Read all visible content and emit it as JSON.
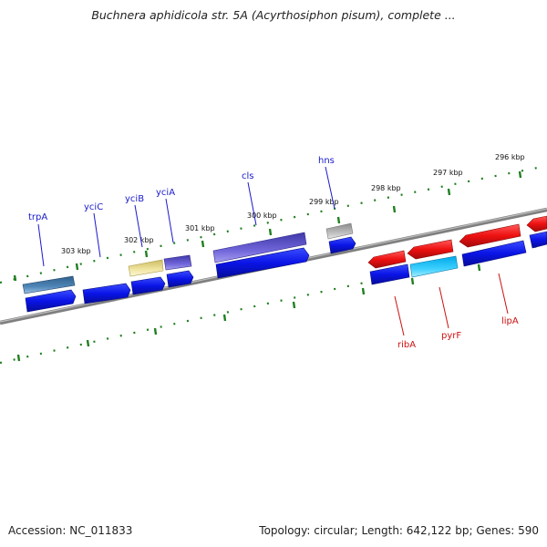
{
  "title": "Buchnera aphidicola str. 5A (Acyrthosiphon pisum), complete ...",
  "footer": {
    "accession": "Accession: NC_011833",
    "summary": "Topology: circular; Length: 642,122 bp; Genes: 590"
  },
  "colors": {
    "forward_gene": "#0a14e6",
    "reverse_gene": "#ee1111",
    "backbone": "#7f7f7f",
    "tick": "#1f7f1f",
    "label_forward": "#1a1acc",
    "label_reverse": "#cc1111"
  },
  "ruler_labels": [
    "303 kbp",
    "302 kbp",
    "301 kbp",
    "300 kbp",
    "299 kbp",
    "298 kbp",
    "297 kbp",
    "296 kbp"
  ],
  "gene_labels": {
    "forward": [
      "trpA",
      "yciC",
      "yciB",
      "yciA",
      "cls",
      "hns"
    ],
    "reverse": [
      "ribA",
      "pyrF",
      "lipA"
    ]
  }
}
